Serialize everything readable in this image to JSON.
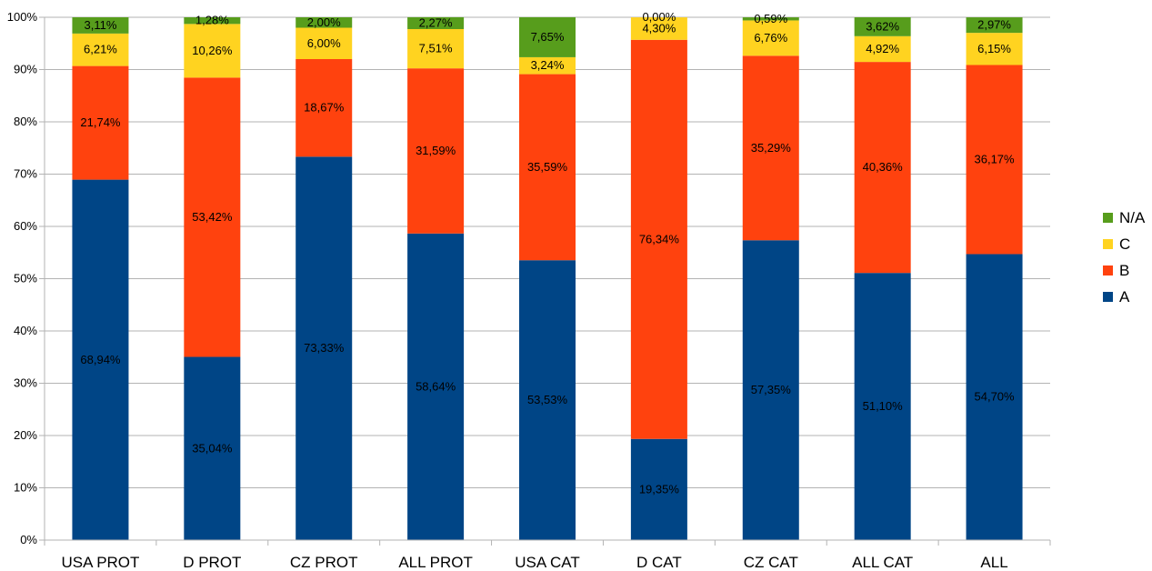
{
  "chart_data": {
    "type": "bar",
    "stacked": true,
    "categories": [
      "USA PROT",
      "D PROT",
      "CZ PROT",
      "ALL PROT",
      "USA CAT",
      "D CAT",
      "CZ CAT",
      "ALL CAT",
      "ALL"
    ],
    "y_ticks": [
      "0%",
      "10%",
      "20%",
      "30%",
      "40%",
      "50%",
      "60%",
      "70%",
      "80%",
      "90%",
      "100%"
    ],
    "ylim": [
      0,
      100
    ],
    "grid": true,
    "legend_position": "right",
    "series": [
      {
        "name": "A",
        "color": "#004586",
        "values": [
          68.94,
          35.04,
          73.33,
          58.64,
          53.53,
          19.35,
          57.35,
          51.1,
          54.7
        ],
        "labels": [
          "68,94%",
          "35,04%",
          "73,33%",
          "58,64%",
          "53,53%",
          "19,35%",
          "57,35%",
          "51,10%",
          "54,70%"
        ]
      },
      {
        "name": "B",
        "color": "#ff420e",
        "values": [
          21.74,
          53.42,
          18.67,
          31.59,
          35.59,
          76.34,
          35.29,
          40.36,
          36.17
        ],
        "labels": [
          "21,74%",
          "53,42%",
          "18,67%",
          "31,59%",
          "35,59%",
          "76,34%",
          "35,29%",
          "40,36%",
          "36,17%"
        ]
      },
      {
        "name": "C",
        "color": "#ffd320",
        "values": [
          6.21,
          10.26,
          6.0,
          7.51,
          3.24,
          4.3,
          6.76,
          4.92,
          6.15
        ],
        "labels": [
          "6,21%",
          "10,26%",
          "6,00%",
          "7,51%",
          "3,24%",
          "4,30%",
          "6,76%",
          "4,92%",
          "6,15%"
        ]
      },
      {
        "name": "N/A",
        "color": "#579d1c",
        "values": [
          3.11,
          1.28,
          2.0,
          2.27,
          7.65,
          0.0,
          0.59,
          3.62,
          2.97
        ],
        "labels": [
          "3,11%",
          "1,28%",
          "2,00%",
          "2,27%",
          "7,65%",
          "0,00%",
          "0,59%",
          "3,62%",
          "2,97%"
        ]
      }
    ],
    "legend_order": [
      "N/A",
      "C",
      "B",
      "A"
    ]
  }
}
